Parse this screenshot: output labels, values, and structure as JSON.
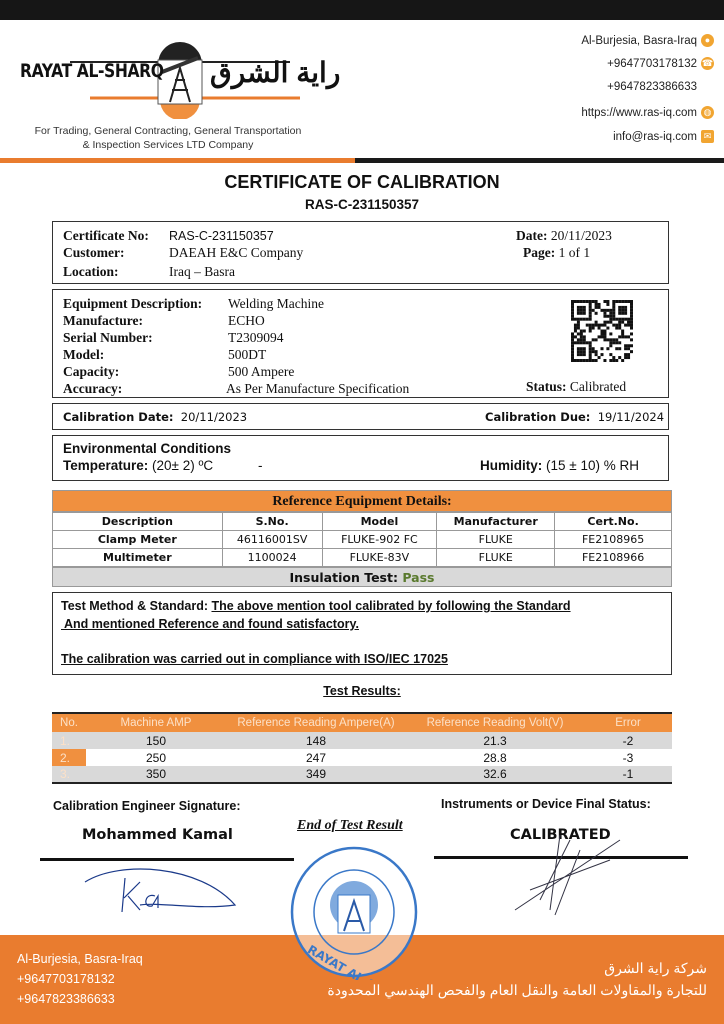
{
  "header": {
    "logo_en": "RAYAT AL-SHARQ",
    "logo_ar": "راية الشرق",
    "tagline1": "For Trading, General Contracting, General Transportation",
    "tagline2": "& Inspection Services LTD Company",
    "contacts": [
      {
        "text": "Al-Burjesia, Basra-Iraq",
        "icon": "location-pin-icon"
      },
      {
        "text": "+9647703178132",
        "icon": "phone-icon"
      },
      {
        "text": "+9647823386633",
        "icon": ""
      },
      {
        "text": "https://www.ras-iq.com",
        "icon": "globe-icon"
      },
      {
        "text": "info@ras-iq.com",
        "icon": "mail-icon"
      }
    ]
  },
  "title": "CERTIFICATE OF CALIBRATION",
  "cert_code": "RAS-C-231150357",
  "info": {
    "cert_no_label": "Certificate No:",
    "cert_no": "RAS-C-231150357",
    "customer_label": "Customer:",
    "customer": "DAEAH E&C Company",
    "location_label": "Location:",
    "location": "Iraq – Basra",
    "date_label": "Date:",
    "date": "20/11/2023",
    "page_label": "Page:",
    "page": "1 of 1"
  },
  "equipment": {
    "rows": [
      [
        "Equipment Description:",
        "Welding Machine"
      ],
      [
        "Manufacture:",
        "ECHO"
      ],
      [
        "Serial Number:",
        "T2309094"
      ],
      [
        "Model:",
        "500DT"
      ],
      [
        "Capacity:",
        "500 Ampere"
      ],
      [
        "Accuracy:",
        "As Per Manufacture Specification"
      ]
    ],
    "status_label": "Status:",
    "status": "Calibrated"
  },
  "calibration": {
    "date_label": "Calibration Date:",
    "date": "20/11/2023",
    "due_label": "Calibration Due:",
    "due": "19/11/2024"
  },
  "environment": {
    "title": "Environmental Conditions",
    "temp_label": "Temperature:",
    "temp": "(20± 2) ºC",
    "dash": "-",
    "hum_label": "Humidity:",
    "hum": "(15 ± 10) % RH"
  },
  "reference": {
    "title": "Reference Equipment Details:",
    "headers": [
      "Description",
      "S.No.",
      "Model",
      "Manufacturer",
      "Cert.No."
    ],
    "rows": [
      [
        "Clamp Meter",
        "46116001SV",
        "FLUKE-902 FC",
        "FLUKE",
        "FE2108965"
      ],
      [
        "Multimeter",
        "1100024",
        "FLUKE-83V",
        "FLUKE",
        "FE2108966"
      ]
    ],
    "insulation_label": "Insulation Test:",
    "insulation": "Pass"
  },
  "method": {
    "label": "Test Method & Standard:",
    "line1": "The above mention tool calibrated by following the Standard",
    "line2": " And mentioned Reference and found satisfactory.",
    "line3": "The calibration was carried out in compliance with ISO/IEC 17025"
  },
  "results": {
    "title": "Test Results:",
    "headers": [
      "No.",
      "Machine AMP",
      "Reference Reading Ampere(A)",
      "Reference Reading Volt(V)",
      "Error"
    ],
    "rows": [
      [
        "1.",
        "150",
        "148",
        "21.3",
        "-2"
      ],
      [
        "2.",
        "250",
        "247",
        "28.8",
        "-3"
      ],
      [
        "3.",
        "350",
        "349",
        "32.6",
        "-1"
      ]
    ]
  },
  "signatures": {
    "engineer_label": "Calibration Engineer Signature:",
    "engineer": "Mohammed Kamal",
    "end": "End of Test Result",
    "status_label": "Instruments or Device Final Status:",
    "status": "CALIBRATED",
    "stamp_text": "RAYAT AL-SHARQ Co. شركة راية الشرق"
  },
  "footer": {
    "address": "Al-Burjesia, Basra-Iraq",
    "phone1": "+9647703178132",
    "phone2": "+9647823386633",
    "ar1": "شركة راية الشرق",
    "ar2": "للتجارة والمقاولات العامة والنقل العام والفحص الهندسي المحدودة"
  },
  "colors": {
    "orange": "#e97c2f",
    "table_orange": "#f0903f",
    "pass_green": "#5a7a2e"
  }
}
